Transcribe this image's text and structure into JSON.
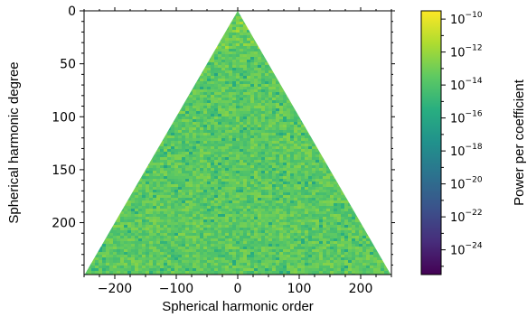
{
  "chart_data": {
    "type": "heatmap",
    "title": "",
    "xlabel": "Spherical harmonic order",
    "ylabel": "Spherical harmonic degree",
    "xlim": [
      -250,
      250
    ],
    "ylim": [
      249,
      0
    ],
    "x_ticks": [
      -200,
      -100,
      0,
      100,
      200
    ],
    "x_tick_labels": [
      "−200",
      "−100",
      "0",
      "100",
      "200"
    ],
    "y_ticks": [
      0,
      50,
      100,
      150,
      200
    ],
    "y_tick_labels": [
      "0",
      "50",
      "100",
      "150",
      "200"
    ],
    "max_degree": 249,
    "domain": "triangular region where |order| <= degree; blank outside",
    "typical_log10_power_range": [
      -14.5,
      -12.5
    ],
    "colorbar": {
      "label": "Power per coefficient",
      "colormap": "viridis",
      "scale": "log",
      "vmin_exp": -25.5,
      "vmax_exp": -9.5,
      "ticks_exp": [
        -10,
        -12,
        -14,
        -16,
        -18,
        -20,
        -22,
        -24
      ],
      "tick_base": "10"
    },
    "colormap_stops": [
      "#440154",
      "#472d7b",
      "#3b528b",
      "#2c728e",
      "#21918c",
      "#28ae80",
      "#5ec962",
      "#addc30",
      "#fde725"
    ]
  }
}
